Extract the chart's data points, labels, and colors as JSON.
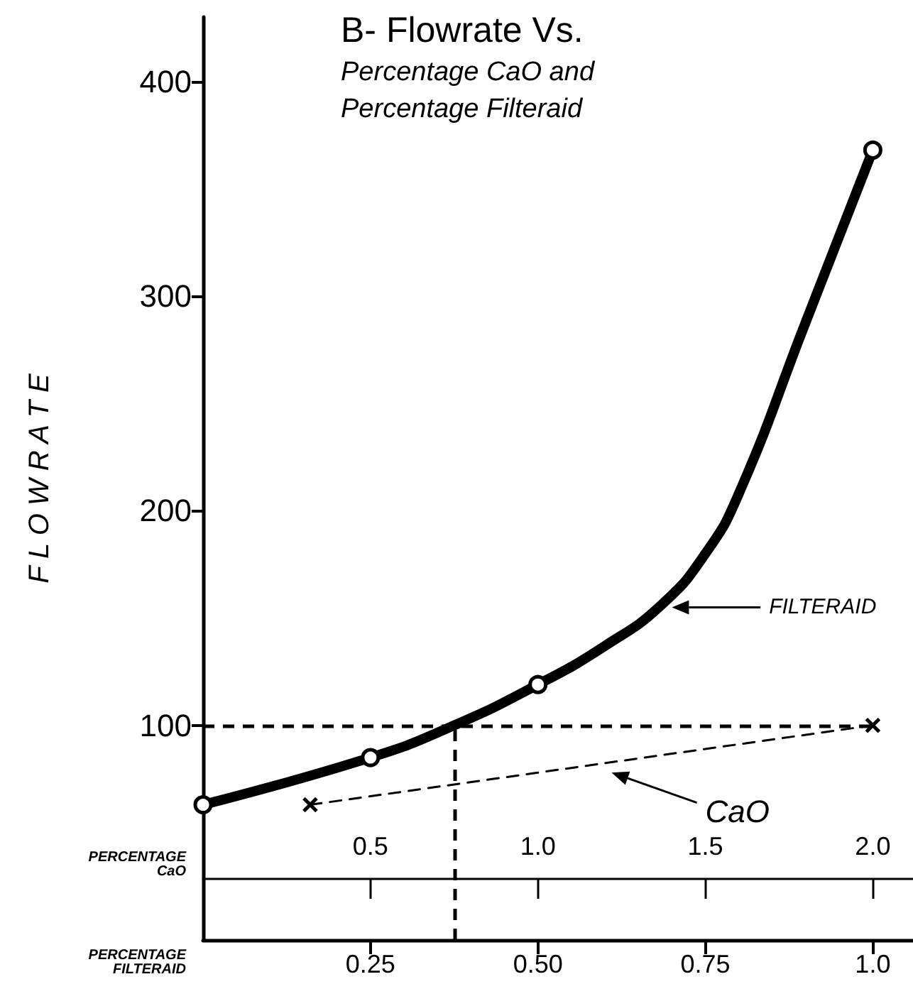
{
  "chart_data": {
    "type": "line",
    "title": "B- Flowrate Vs.",
    "subtitle": "Percentage CaO and\nPercentage Filteraid",
    "ylabel": "F L O W R A T E",
    "xlabel": "PERCENTAGE\nFILTERAID",
    "x2label": "PERCENTAGE\nCaO",
    "xlim": [
      0,
      1.06
    ],
    "xticks": [
      0.25,
      {
        "value": 0.5,
        "label": "0.50"
      },
      0.75,
      {
        "value": 1,
        "label": "1.0"
      }
    ],
    "x2lim": [
      0,
      2.12
    ],
    "x2ticks": [
      0.5,
      {
        "value": 1,
        "label": "1.0"
      },
      1.5,
      {
        "value": 2,
        "label": "2.0"
      }
    ],
    "ylim": [
      0,
      430
    ],
    "yticks": [
      100,
      200,
      300,
      400
    ],
    "grid": false,
    "legend": "right",
    "series": [
      {
        "name": "FILTERAID",
        "color": "#000000",
        "marker": "none",
        "line_style": "solid",
        "x": [
          0,
          0.25,
          0.375,
          0.5,
          0.6,
          0.684,
          0.75,
          0.8,
          0.9,
          1.0
        ],
        "values": [
          63,
          85,
          100,
          119,
          137,
          156,
          180,
          208,
          288,
          368
        ]
      },
      {
        "type": "scatter",
        "color": "#000000",
        "marker": "circle",
        "x": [
          0,
          0.25,
          0.5,
          1.0
        ],
        "values": [
          63,
          85,
          119,
          368
        ]
      },
      {
        "name": "CaO",
        "color": "#000000",
        "marker": "cross",
        "line_style": "dashed",
        "axis": "x2",
        "x": [
          0.32,
          2.0
        ],
        "values": [
          63,
          100
        ]
      }
    ],
    "ref_lines": [
      {
        "axis": "y",
        "value": 100,
        "line_style": "dashed"
      },
      {
        "axis": "x",
        "value": 0.375,
        "line_style": "dashed"
      }
    ]
  }
}
